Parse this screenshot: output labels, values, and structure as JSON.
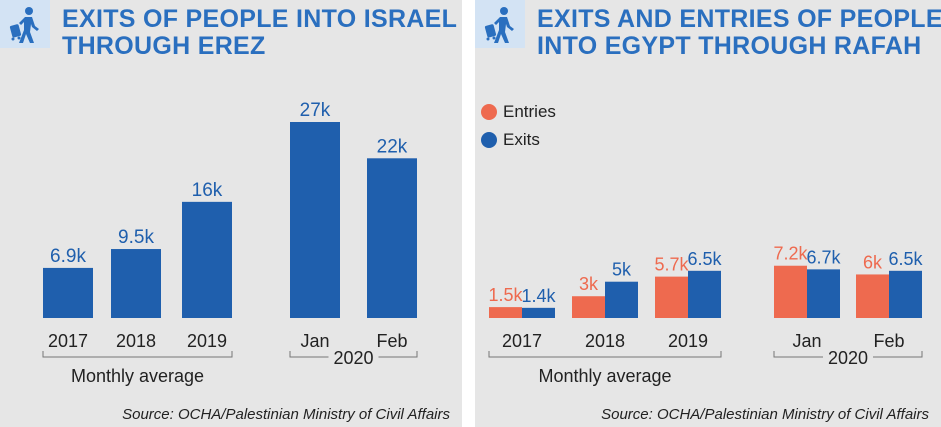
{
  "colors": {
    "exits": "#1f5fad",
    "entries": "#ee6a4f",
    "title": "#2a6fbf",
    "panel_bg": "#e6e6e6",
    "icon_bg": "#d3e3f4"
  },
  "left": {
    "icon": "traveler-icon",
    "title_line1": "EXITS OF PEOPLE INTO ISRAEL",
    "title_line2": "THROUGH EREZ",
    "source": "Source: OCHA/Palestinian Ministry of Civil Affairs",
    "group1_label": "Monthly average",
    "group2_label": "2020"
  },
  "right": {
    "icon": "traveler-icon",
    "title_line1": "EXITS AND ENTRIES OF PEOPLE",
    "title_line2": "INTO EGYPT THROUGH RAFAH",
    "source": "Source: OCHA/Palestinian Ministry of Civil Affairs",
    "legend_entries": "Entries",
    "legend_exits": "Exits",
    "group1_label": "Monthly average",
    "group2_label": "2020"
  },
  "chart_data": [
    {
      "type": "bar",
      "title": "EXITS OF PEOPLE INTO ISRAEL THROUGH EREZ",
      "categories": [
        "2017",
        "2018",
        "2019",
        "Jan",
        "Feb"
      ],
      "values": [
        6900,
        9500,
        16000,
        27000,
        22000
      ],
      "data_labels": [
        "6.9k",
        "9.5k",
        "16k",
        "27k",
        "22k"
      ],
      "category_groups": [
        {
          "label": "Monthly average",
          "categories": [
            "2017",
            "2018",
            "2019"
          ]
        },
        {
          "label": "2020",
          "categories": [
            "Jan",
            "Feb"
          ]
        }
      ],
      "ylim": [
        0,
        27000
      ],
      "grid": false
    },
    {
      "type": "bar",
      "title": "EXITS AND ENTRIES OF PEOPLE INTO EGYPT THROUGH RAFAH",
      "categories": [
        "2017",
        "2018",
        "2019",
        "Jan",
        "Feb"
      ],
      "series": [
        {
          "name": "Entries",
          "values": [
            1500,
            3000,
            5700,
            7200,
            6000
          ],
          "data_labels": [
            "1.5k",
            "3k",
            "5.7k",
            "7.2k",
            "6k"
          ]
        },
        {
          "name": "Exits",
          "values": [
            1400,
            5000,
            6500,
            6700,
            6500
          ],
          "data_labels": [
            "1.4k",
            "5k",
            "6.5k",
            "6.7k",
            "6.5k"
          ]
        }
      ],
      "category_groups": [
        {
          "label": "Monthly average",
          "categories": [
            "2017",
            "2018",
            "2019"
          ]
        },
        {
          "label": "2020",
          "categories": [
            "Jan",
            "Feb"
          ]
        }
      ],
      "legend": "top-left",
      "ylim": [
        0,
        27000
      ],
      "grid": false
    }
  ]
}
